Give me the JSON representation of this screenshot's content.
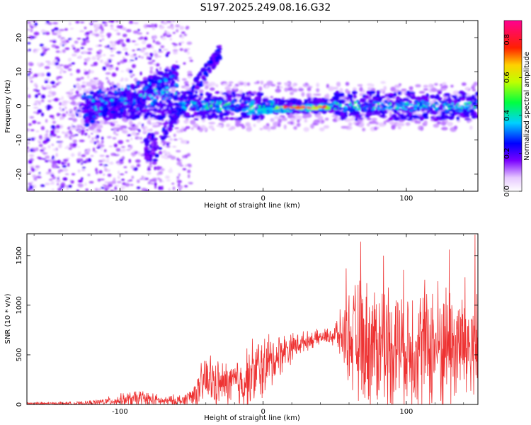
{
  "figure": {
    "title": "S197.2025.249.08.16.G32"
  },
  "chart_data": [
    {
      "type": "heatmap",
      "title": "S197.2025.249.08.16.G32",
      "xlabel": "Height of straight line (km)",
      "ylabel": "Frequency (Hz)",
      "xlim": [
        -165,
        150
      ],
      "ylim": [
        -25,
        25
      ],
      "xticks": [
        -100,
        0,
        100
      ],
      "yticks": [
        -20,
        -10,
        0,
        10,
        20
      ],
      "colorbar": {
        "label": "Normalized spectral amplitude",
        "range": [
          0.0,
          0.9
        ],
        "ticks": [
          0.0,
          0.2,
          0.4,
          0.6,
          0.8
        ]
      },
      "features": [
        {
          "name": "main-ridge",
          "x_range": [
            -130,
            150
          ],
          "freq_hz": 0,
          "peak_amplitude": 0.9,
          "peak_x_range": [
            10,
            45
          ]
        },
        {
          "name": "rising-streak",
          "x_range": [
            -70,
            -30
          ],
          "freq_hz_range": [
            -8,
            17
          ]
        },
        {
          "name": "arc-upper",
          "x_range": [
            -120,
            -60
          ],
          "freq_hz_range": [
            -5,
            10
          ]
        },
        {
          "name": "scattered-noise",
          "x_range": [
            -165,
            -60
          ],
          "freq_hz_range": [
            -25,
            25
          ]
        }
      ]
    },
    {
      "type": "line",
      "xlabel": "Height of straight line (km)",
      "ylabel": "SNR (10 * v/v)",
      "xlim": [
        -165,
        150
      ],
      "ylim": [
        0,
        1720
      ],
      "xticks": [
        -100,
        0,
        100
      ],
      "yticks": [
        0,
        500,
        1000,
        1500
      ],
      "series": [
        {
          "name": "SNR",
          "color": "#ee3333",
          "envelope": [
            {
              "x": -165,
              "base": 10,
              "amp": 15
            },
            {
              "x": -125,
              "base": 10,
              "amp": 25
            },
            {
              "x": -105,
              "base": 35,
              "amp": 60
            },
            {
              "x": -85,
              "base": 60,
              "amp": 120
            },
            {
              "x": -70,
              "base": 30,
              "amp": 60
            },
            {
              "x": -55,
              "base": 40,
              "amp": 90
            },
            {
              "x": -45,
              "base": 140,
              "amp": 200
            },
            {
              "x": -40,
              "base": 250,
              "amp": 380
            },
            {
              "x": -30,
              "base": 200,
              "amp": 260
            },
            {
              "x": -15,
              "base": 220,
              "amp": 350
            },
            {
              "x": -5,
              "base": 330,
              "amp": 450
            },
            {
              "x": 5,
              "base": 420,
              "amp": 360
            },
            {
              "x": 15,
              "base": 550,
              "amp": 220
            },
            {
              "x": 30,
              "base": 640,
              "amp": 110
            },
            {
              "x": 45,
              "base": 690,
              "amp": 90
            },
            {
              "x": 55,
              "base": 700,
              "amp": 300
            },
            {
              "x": 65,
              "base": 620,
              "amp": 750
            },
            {
              "x": 90,
              "base": 600,
              "amp": 800
            },
            {
              "x": 120,
              "base": 590,
              "amp": 820
            },
            {
              "x": 150,
              "base": 600,
              "amp": 820
            }
          ],
          "peaks": [
            {
              "x": 68,
              "y": 1640
            },
            {
              "x": 58,
              "y": 1370
            },
            {
              "x": 148,
              "y": 1710
            },
            {
              "x": 130,
              "y": 1560
            },
            {
              "x": 84,
              "y": 1500
            }
          ]
        }
      ]
    }
  ]
}
